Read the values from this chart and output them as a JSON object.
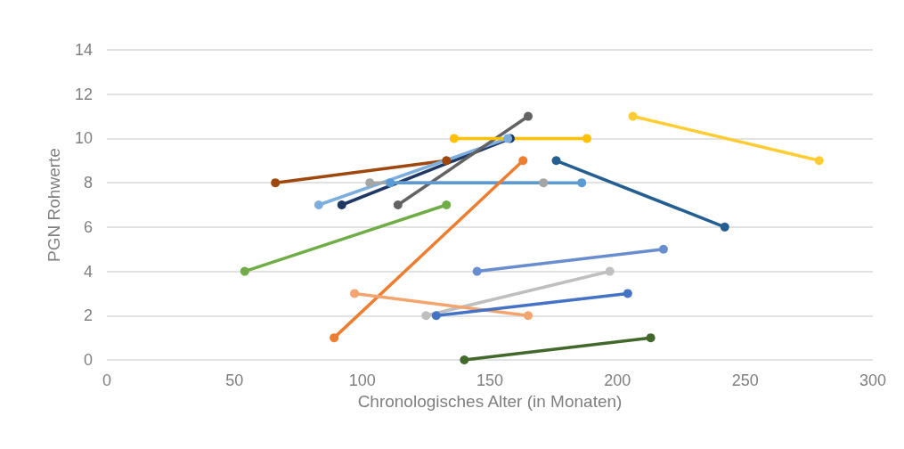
{
  "chart_data": {
    "type": "line",
    "xlabel": "Chronologisches Alter (in Monaten)",
    "ylabel": "PGN Rohwerte",
    "xlim": [
      0,
      300
    ],
    "xticks": [
      0,
      50,
      100,
      150,
      200,
      250,
      300
    ],
    "ylim": [
      0,
      14
    ],
    "yticks": [
      0,
      2,
      4,
      6,
      8,
      10,
      12,
      14
    ],
    "grid": "y",
    "marker": "circle",
    "line_style": "solid",
    "series": [
      {
        "color": "#9e480e",
        "x": [
          66,
          133
        ],
        "values": [
          8,
          9
        ]
      },
      {
        "color": "#203864",
        "x": [
          92,
          158
        ],
        "values": [
          7,
          10
        ]
      },
      {
        "color": "#7cafdd",
        "x": [
          83,
          157
        ],
        "values": [
          7,
          10
        ]
      },
      {
        "color": "#636363",
        "x": [
          114,
          165
        ],
        "values": [
          7,
          11
        ]
      },
      {
        "color": "#ffc000",
        "x": [
          136,
          188
        ],
        "values": [
          10,
          10
        ]
      },
      {
        "color": "#a5a5a5",
        "x": [
          103,
          171
        ],
        "values": [
          8,
          8
        ]
      },
      {
        "color": "#5b9bd5",
        "x": [
          111,
          186
        ],
        "values": [
          8,
          8
        ]
      },
      {
        "color": "#70ad47",
        "x": [
          54,
          133
        ],
        "values": [
          4,
          7
        ]
      },
      {
        "color": "#ed7d31",
        "x": [
          89,
          163
        ],
        "values": [
          1,
          9
        ]
      },
      {
        "color": "#255e91",
        "x": [
          176,
          242
        ],
        "values": [
          9,
          6
        ]
      },
      {
        "color": "#ffcd33",
        "x": [
          206,
          279
        ],
        "values": [
          11,
          9
        ]
      },
      {
        "color": "#698ed0",
        "x": [
          145,
          218
        ],
        "values": [
          4,
          5
        ]
      },
      {
        "color": "#bfbfbf",
        "x": [
          125,
          197
        ],
        "values": [
          2,
          4
        ]
      },
      {
        "color": "#f4a46e",
        "x": [
          97,
          165
        ],
        "values": [
          3,
          2
        ]
      },
      {
        "color": "#4472c4",
        "x": [
          129,
          204
        ],
        "values": [
          2,
          3
        ]
      },
      {
        "color": "#43682b",
        "x": [
          140,
          213
        ],
        "values": [
          0,
          1
        ]
      }
    ]
  }
}
